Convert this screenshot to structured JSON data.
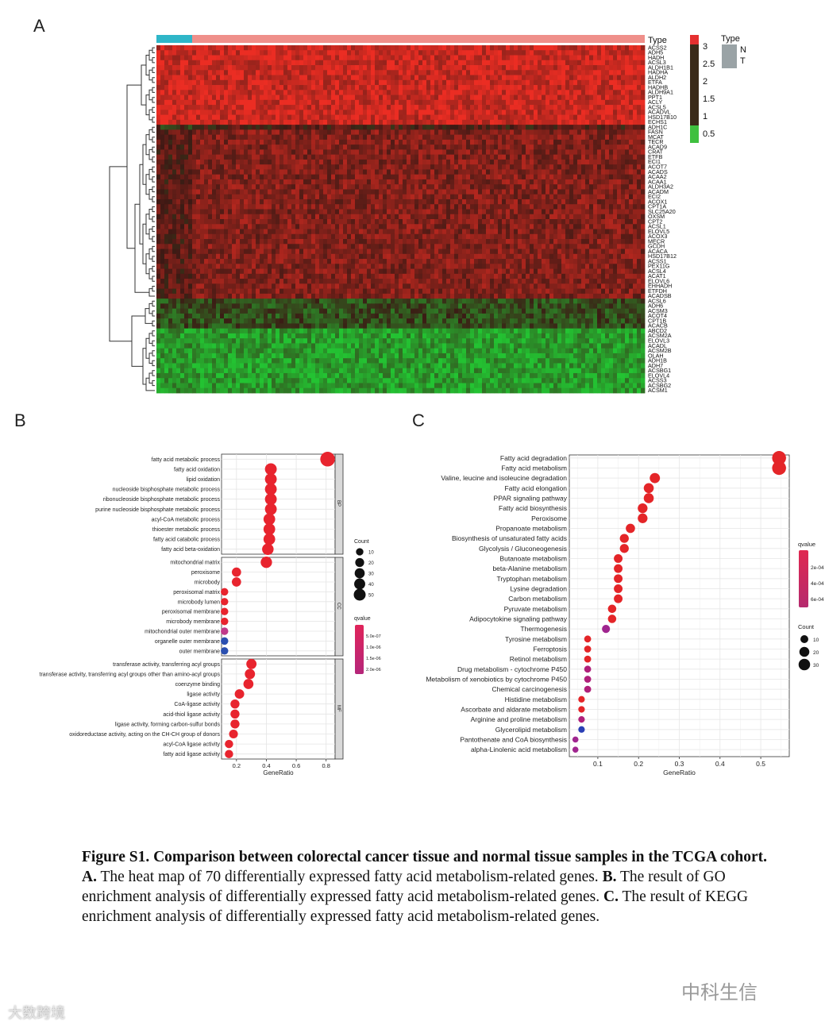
{
  "panels": {
    "a": "A",
    "b": "B",
    "c": "C"
  },
  "heatmap": {
    "type_label": "Type",
    "genes": [
      "ACSS2",
      "ADH5",
      "HADH",
      "ACSL3",
      "ALDH1B1",
      "HADHA",
      "ALDH2",
      "ETFA",
      "HADHB",
      "ALDH9A1",
      "PPT1",
      "ACLY",
      "ACSL5",
      "ACADVL",
      "HSD17B10",
      "ECHS1",
      "ADH1C",
      "FASN",
      "MCAT",
      "TECR",
      "ACAD9",
      "CRAT",
      "ETFB",
      "ECI1",
      "ACOT7",
      "ACADS",
      "ACAA2",
      "ACAA1",
      "ALDH3A2",
      "ACADM",
      "ECI2",
      "ACOX1",
      "CPT1A",
      "SLC25A20",
      "OXSM",
      "CPT2",
      "ACSL1",
      "ELOVL5",
      "ACOX3",
      "MECR",
      "GCDH",
      "ACACA",
      "HSD17B12",
      "ACSS1",
      "PEX11G",
      "ACSL4",
      "ACAT1",
      "ELOVL6",
      "EHHADH",
      "ETFDH",
      "ACADSB",
      "ACSL6",
      "ADH6",
      "ACSM3",
      "ACOT4",
      "CPT1B",
      "ACACB",
      "ABCD2",
      "ACSM2A",
      "ELOVL3",
      "ACADL",
      "ACSM2B",
      "OLAH",
      "ADH1B",
      "ADH7",
      "ACSBG1",
      "ELOVL4",
      "ACSS3",
      "ACSBG2",
      "ACSM1"
    ],
    "scale": {
      "ticks": [
        "3",
        "2.5",
        "2",
        "1.5",
        "1",
        "0.5"
      ],
      "colors": {
        "high": "#e53030",
        "mid": "#3b2b1a",
        "low": "#3fc03f"
      }
    },
    "legend": {
      "title": "Type",
      "items": [
        {
          "label": "N",
          "color": "#2fb6c8"
        },
        {
          "label": "T",
          "color": "#ef8f8a"
        }
      ]
    },
    "colors": {
      "normal": "#2fb6c8",
      "tumor": "#ef8f8a"
    }
  },
  "go": {
    "chart_data": {
      "type": "scatter",
      "xlabel": "GeneRatio",
      "xticks": [
        "0.2",
        "0.4",
        "0.6",
        "0.8"
      ],
      "xlim": [
        0.1,
        0.86
      ],
      "groups": [
        {
          "name": "BP",
          "terms": [
            {
              "term": "fatty acid metabolic process",
              "x": 0.81,
              "count": 52,
              "q": 1e-07
            },
            {
              "term": "fatty acid oxidation",
              "x": 0.43,
              "count": 28,
              "q": 1e-07
            },
            {
              "term": "lipid oxidation",
              "x": 0.43,
              "count": 28,
              "q": 1e-07
            },
            {
              "term": "nucleoside bisphosphate metabolic process",
              "x": 0.43,
              "count": 28,
              "q": 1e-07
            },
            {
              "term": "ribonucleoside bisphosphate metabolic process",
              "x": 0.43,
              "count": 28,
              "q": 1e-07
            },
            {
              "term": "purine nucleoside bisphosphate metabolic process",
              "x": 0.43,
              "count": 28,
              "q": 1e-07
            },
            {
              "term": "acyl-CoA metabolic process",
              "x": 0.42,
              "count": 27,
              "q": 1e-07
            },
            {
              "term": "thioester metabolic process",
              "x": 0.42,
              "count": 27,
              "q": 1e-07
            },
            {
              "term": "fatty acid catabolic process",
              "x": 0.42,
              "count": 27,
              "q": 1e-07
            },
            {
              "term": "fatty acid beta-oxidation",
              "x": 0.41,
              "count": 26,
              "q": 1e-07
            }
          ]
        },
        {
          "name": "CC",
          "terms": [
            {
              "term": "mitochondrial matrix",
              "x": 0.4,
              "count": 25,
              "q": 1e-07
            },
            {
              "term": "peroxisome",
              "x": 0.2,
              "count": 13,
              "q": 1e-07
            },
            {
              "term": "microbody",
              "x": 0.2,
              "count": 13,
              "q": 1e-07
            },
            {
              "term": "peroxisomal matrix",
              "x": 0.12,
              "count": 6,
              "q": 1e-07
            },
            {
              "term": "microbody lumen",
              "x": 0.12,
              "count": 6,
              "q": 1e-07
            },
            {
              "term": "peroxisomal membrane",
              "x": 0.12,
              "count": 6,
              "q": 1e-07
            },
            {
              "term": "microbody membrane",
              "x": 0.12,
              "count": 6,
              "q": 1e-07
            },
            {
              "term": "mitochondrial outer membrane",
              "x": 0.12,
              "count": 6,
              "q": 1e-06
            },
            {
              "term": "organelle outer membrane",
              "x": 0.12,
              "count": 6,
              "q": 2e-06
            },
            {
              "term": "outer membrane",
              "x": 0.12,
              "count": 6,
              "q": 2e-06
            }
          ]
        },
        {
          "name": "MF",
          "terms": [
            {
              "term": "transferase activity, transferring acyl groups",
              "x": 0.3,
              "count": 18,
              "q": 1e-07
            },
            {
              "term": "transferase activity, transferring acyl groups other than amino-acyl groups",
              "x": 0.29,
              "count": 18,
              "q": 1e-07
            },
            {
              "term": "coenzyme binding",
              "x": 0.28,
              "count": 17,
              "q": 1e-07
            },
            {
              "term": "ligase activity",
              "x": 0.22,
              "count": 14,
              "q": 1e-07
            },
            {
              "term": "CoA-ligase activity",
              "x": 0.19,
              "count": 12,
              "q": 1e-07
            },
            {
              "term": "acid-thiol ligase activity",
              "x": 0.19,
              "count": 12,
              "q": 1e-07
            },
            {
              "term": "ligase activity, forming carbon-sulfur bonds",
              "x": 0.19,
              "count": 12,
              "q": 1e-07
            },
            {
              "term": "oxidoreductase activity, acting on the CH-CH group of donors",
              "x": 0.18,
              "count": 11,
              "q": 1e-07
            },
            {
              "term": "acyl-CoA ligase activity",
              "x": 0.15,
              "count": 9,
              "q": 1e-07
            },
            {
              "term": "fatty acid ligase activity",
              "x": 0.15,
              "count": 9,
              "q": 1e-07
            }
          ]
        }
      ],
      "count_legend": {
        "title": "Count",
        "values": [
          "10",
          "20",
          "30",
          "40",
          "50"
        ]
      },
      "q_legend": {
        "title": "qvalue",
        "values": [
          "5.0e-07",
          "1.0e-06",
          "1.5e-06",
          "2.0e-06"
        ]
      }
    }
  },
  "kegg": {
    "chart_data": {
      "type": "scatter",
      "xlabel": "GeneRatio",
      "xticks": [
        "0.1",
        "0.2",
        "0.3",
        "0.4",
        "0.5"
      ],
      "xlim": [
        0.03,
        0.57
      ],
      "terms": [
        {
          "term": "Fatty acid degradation",
          "x": 0.545,
          "count": 36,
          "q": 1e-05
        },
        {
          "term": "Fatty acid metabolism",
          "x": 0.545,
          "count": 36,
          "q": 1e-05
        },
        {
          "term": "Valine, leucine and isoleucine degradation",
          "x": 0.24,
          "count": 16,
          "q": 1e-05
        },
        {
          "term": "Fatty acid elongation",
          "x": 0.225,
          "count": 15,
          "q": 1e-05
        },
        {
          "term": "PPAR signaling pathway",
          "x": 0.225,
          "count": 15,
          "q": 1e-05
        },
        {
          "term": "Fatty acid biosynthesis",
          "x": 0.21,
          "count": 14,
          "q": 1e-05
        },
        {
          "term": "Peroxisome",
          "x": 0.21,
          "count": 14,
          "q": 1e-05
        },
        {
          "term": "Propanoate metabolism",
          "x": 0.18,
          "count": 12,
          "q": 1e-05
        },
        {
          "term": "Biosynthesis of unsaturated fatty acids",
          "x": 0.165,
          "count": 11,
          "q": 1e-05
        },
        {
          "term": "Glycolysis / Gluconeogenesis",
          "x": 0.165,
          "count": 11,
          "q": 1e-05
        },
        {
          "term": "Butanoate metabolism",
          "x": 0.15,
          "count": 10,
          "q": 1e-05
        },
        {
          "term": "beta-Alanine metabolism",
          "x": 0.15,
          "count": 10,
          "q": 1e-05
        },
        {
          "term": "Tryptophan metabolism",
          "x": 0.15,
          "count": 10,
          "q": 1e-05
        },
        {
          "term": "Lysine degradation",
          "x": 0.15,
          "count": 10,
          "q": 1e-05
        },
        {
          "term": "Carbon metabolism",
          "x": 0.15,
          "count": 10,
          "q": 1e-05
        },
        {
          "term": "Pyruvate metabolism",
          "x": 0.135,
          "count": 9,
          "q": 1e-05
        },
        {
          "term": "Adipocytokine signaling pathway",
          "x": 0.135,
          "count": 9,
          "q": 1e-05
        },
        {
          "term": "Thermogenesis",
          "x": 0.12,
          "count": 8,
          "q": 0.0003
        },
        {
          "term": "Tyrosine metabolism",
          "x": 0.075,
          "count": 5,
          "q": 1e-05
        },
        {
          "term": "Ferroptosis",
          "x": 0.075,
          "count": 5,
          "q": 1e-05
        },
        {
          "term": "Retinol metabolism",
          "x": 0.075,
          "count": 5,
          "q": 1e-05
        },
        {
          "term": "Drug metabolism - cytochrome P450",
          "x": 0.075,
          "count": 5,
          "q": 0.0001
        },
        {
          "term": "Metabolism of xenobiotics by cytochrome P450",
          "x": 0.075,
          "count": 5,
          "q": 0.0001
        },
        {
          "term": "Chemical carcinogenesis",
          "x": 0.075,
          "count": 5,
          "q": 0.0001
        },
        {
          "term": "Histidine metabolism",
          "x": 0.06,
          "count": 4,
          "q": 1e-05
        },
        {
          "term": "Ascorbate and aldarate metabolism",
          "x": 0.06,
          "count": 4,
          "q": 1e-05
        },
        {
          "term": "Arginine and proline metabolism",
          "x": 0.06,
          "count": 4,
          "q": 0.0002
        },
        {
          "term": "Glycerolipid metabolism",
          "x": 0.06,
          "count": 4,
          "q": 0.0006
        },
        {
          "term": "Pantothenate and CoA biosynthesis",
          "x": 0.045,
          "count": 3,
          "q": 0.0003
        },
        {
          "term": "alpha-Linolenic acid metabolism",
          "x": 0.045,
          "count": 3,
          "q": 0.0003
        }
      ],
      "q_legend": {
        "title": "qvalue",
        "values": [
          "2e-04",
          "4e-04",
          "6e-04"
        ]
      },
      "count_legend": {
        "title": "Count",
        "values": [
          "10",
          "20",
          "30"
        ]
      }
    }
  },
  "caption": {
    "title": "Figure S1. Comparison between colorectal cancer tissue and normal tissue samples in the TCGA cohort.",
    "a_label": "A.",
    "a_text": " The heat map of 70 differentially expressed fatty acid metabolism-related genes. ",
    "b_label": "B.",
    "b_text": " The result of GO enrichment analysis of differentially expressed fatty acid metabolism-related genes. ",
    "c_label": "C.",
    "c_text": " The result of KEGG enrichment analysis of differentially expressed fatty acid metabolism-related genes."
  },
  "watermarks": {
    "right": "中科生信",
    "left": "大数跨境"
  }
}
